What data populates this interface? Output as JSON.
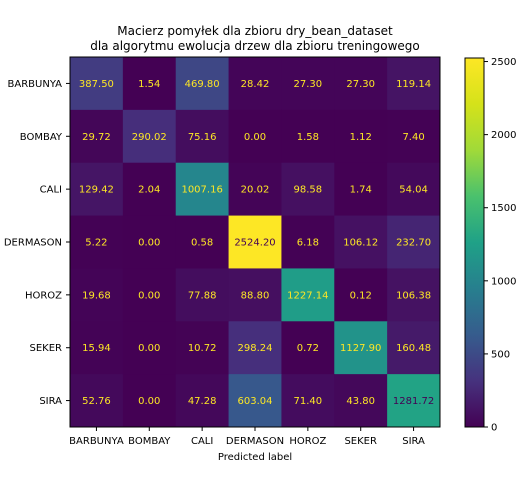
{
  "chart_data": {
    "type": "heatmap",
    "title": [
      "Macierz pomyłek dla zbioru dry_bean_dataset",
      "dla algorytmu ewolucja drzew dla zbioru treningowego"
    ],
    "xlabel": "Predicted label",
    "ylabel": "",
    "x_categories": [
      "BARBUNYA",
      "BOMBAY",
      "CALI",
      "DERMASON",
      "HOROZ",
      "SEKER",
      "SIRA"
    ],
    "y_categories": [
      "BARBUNYA",
      "BOMBAY",
      "CALI",
      "DERMASON",
      "HOROZ",
      "SEKER",
      "SIRA"
    ],
    "values": [
      [
        387.5,
        1.54,
        469.8,
        28.42,
        27.3,
        27.3,
        119.14
      ],
      [
        29.72,
        290.02,
        75.16,
        0.0,
        1.58,
        1.12,
        7.4
      ],
      [
        129.42,
        2.04,
        1007.16,
        20.02,
        98.58,
        1.74,
        54.04
      ],
      [
        5.22,
        0.0,
        0.58,
        2524.2,
        6.18,
        106.12,
        232.7
      ],
      [
        19.68,
        0.0,
        77.88,
        88.8,
        1227.14,
        0.12,
        106.38
      ],
      [
        15.94,
        0.0,
        10.72,
        298.24,
        0.72,
        1127.9,
        160.48
      ],
      [
        52.76,
        0.0,
        47.28,
        603.04,
        71.4,
        43.8,
        1281.72
      ]
    ],
    "value_format": "2 decimals",
    "colormap": "viridis",
    "colorbar": {
      "min": 0,
      "max": 2524.2,
      "ticks": [
        0,
        500,
        1000,
        1500,
        2000,
        2500
      ]
    },
    "text_colors": {
      "light": "#fde725",
      "dark": "#440154"
    }
  }
}
